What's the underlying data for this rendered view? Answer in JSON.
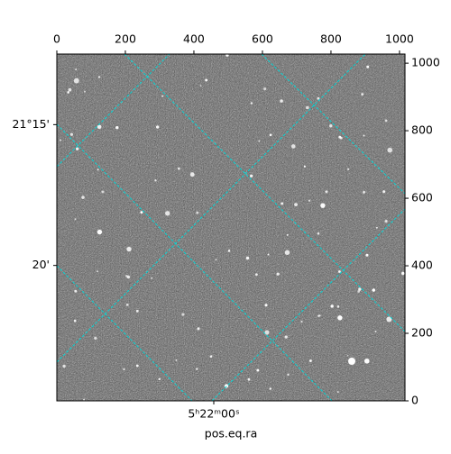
{
  "chart_data": {
    "type": "image",
    "xlabel": "pos.eq.ra",
    "xlim": [
      0,
      1016
    ],
    "ylim": [
      0,
      1027
    ],
    "xticks": [
      0,
      200,
      400,
      600,
      800,
      1000
    ],
    "yticks": [
      0,
      200,
      400,
      600,
      800,
      1000
    ],
    "world_xticks": [
      {
        "value": 458,
        "label": "5ʰ22ᵐ00ˢ"
      }
    ],
    "world_yticks": [
      {
        "value": 818,
        "label": "21°15'"
      },
      {
        "value": 401,
        "label": "20'"
      }
    ],
    "grid_color": "#00d8d8"
  }
}
